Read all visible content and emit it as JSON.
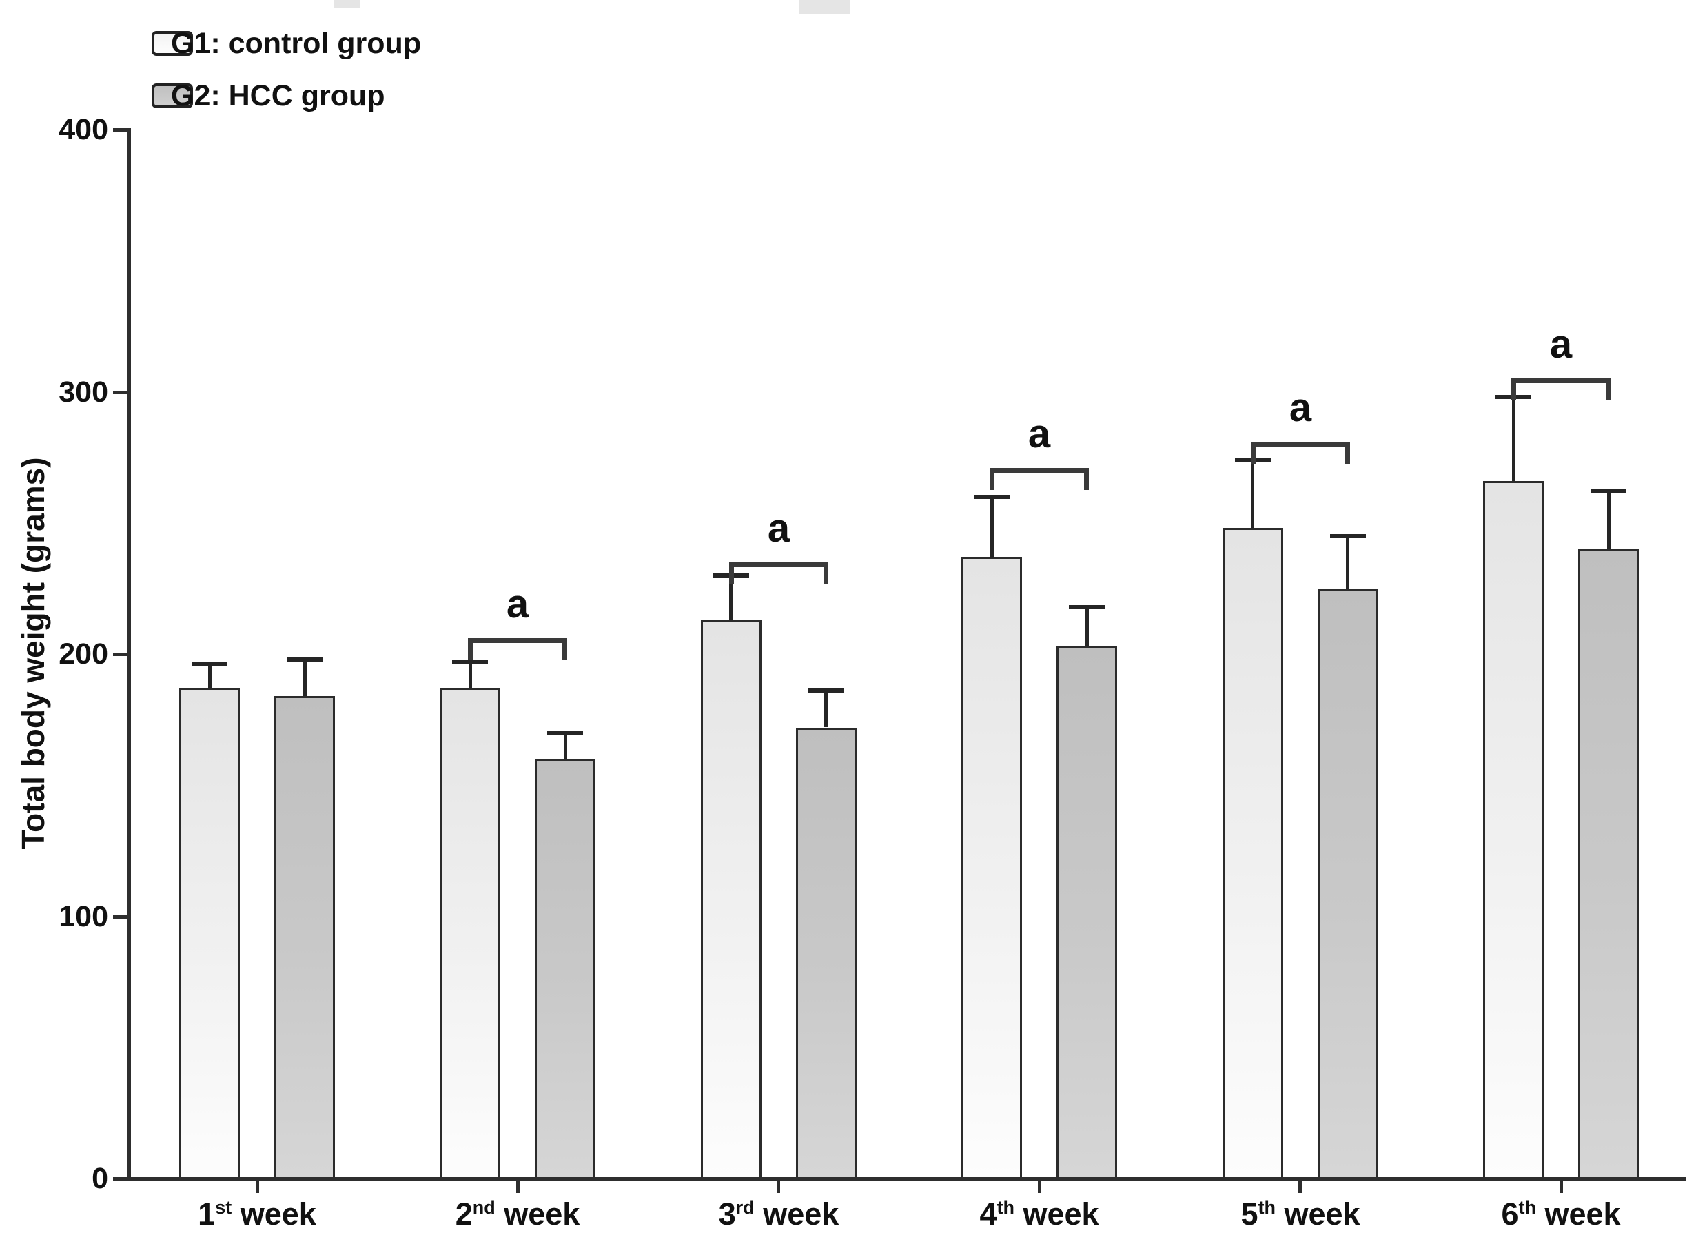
{
  "figure": {
    "background": "#ffffff",
    "artifacts_note": "faint jpeg smudges at top edge"
  },
  "chart_data": {
    "type": "bar",
    "title": "",
    "xlabel": "",
    "ylabel": "Total body weight (grams)",
    "ylim": [
      0,
      400
    ],
    "yticks": [
      0,
      100,
      200,
      300,
      400
    ],
    "grid": false,
    "legend_position": "top-left",
    "categories": [
      "1st week",
      "2nd week",
      "3rd week",
      "4th week",
      "5th week",
      "6th week"
    ],
    "categories_parts": [
      {
        "num": "1",
        "ordinal": "st",
        "word": "week"
      },
      {
        "num": "2",
        "ordinal": "nd",
        "word": "week"
      },
      {
        "num": "3",
        "ordinal": "rd",
        "word": "week"
      },
      {
        "num": "4",
        "ordinal": "th",
        "word": "week"
      },
      {
        "num": "5",
        "ordinal": "th",
        "word": "week"
      },
      {
        "num": "6",
        "ordinal": "th",
        "word": "week"
      }
    ],
    "series": [
      {
        "name": "G1: control group",
        "values": [
          187,
          187,
          213,
          237,
          248,
          266
        ],
        "errors_plus": [
          9,
          10,
          17,
          23,
          26,
          32
        ],
        "fill": "#f0f0f0"
      },
      {
        "name": "G2: HCC group",
        "values": [
          184,
          160,
          172,
          203,
          225,
          240
        ],
        "errors_plus": [
          14,
          10,
          14,
          15,
          20,
          22
        ],
        "fill": "#c6c6c6"
      }
    ],
    "annotations": [
      {
        "category": "2nd week",
        "label": "a",
        "bracket_top": 206
      },
      {
        "category": "3rd week",
        "label": "a",
        "bracket_top": 235
      },
      {
        "category": "4th week",
        "label": "a",
        "bracket_top": 271
      },
      {
        "category": "5th week",
        "label": "a",
        "bracket_top": 281
      },
      {
        "category": "6th week",
        "label": "a",
        "bracket_top": 305
      }
    ],
    "colors": {
      "bar_border": "#2b2b2b",
      "axis": "#2e2e2e",
      "text": "#111111",
      "error_bar": "#252525",
      "bracket": "#3a3a3a"
    }
  }
}
